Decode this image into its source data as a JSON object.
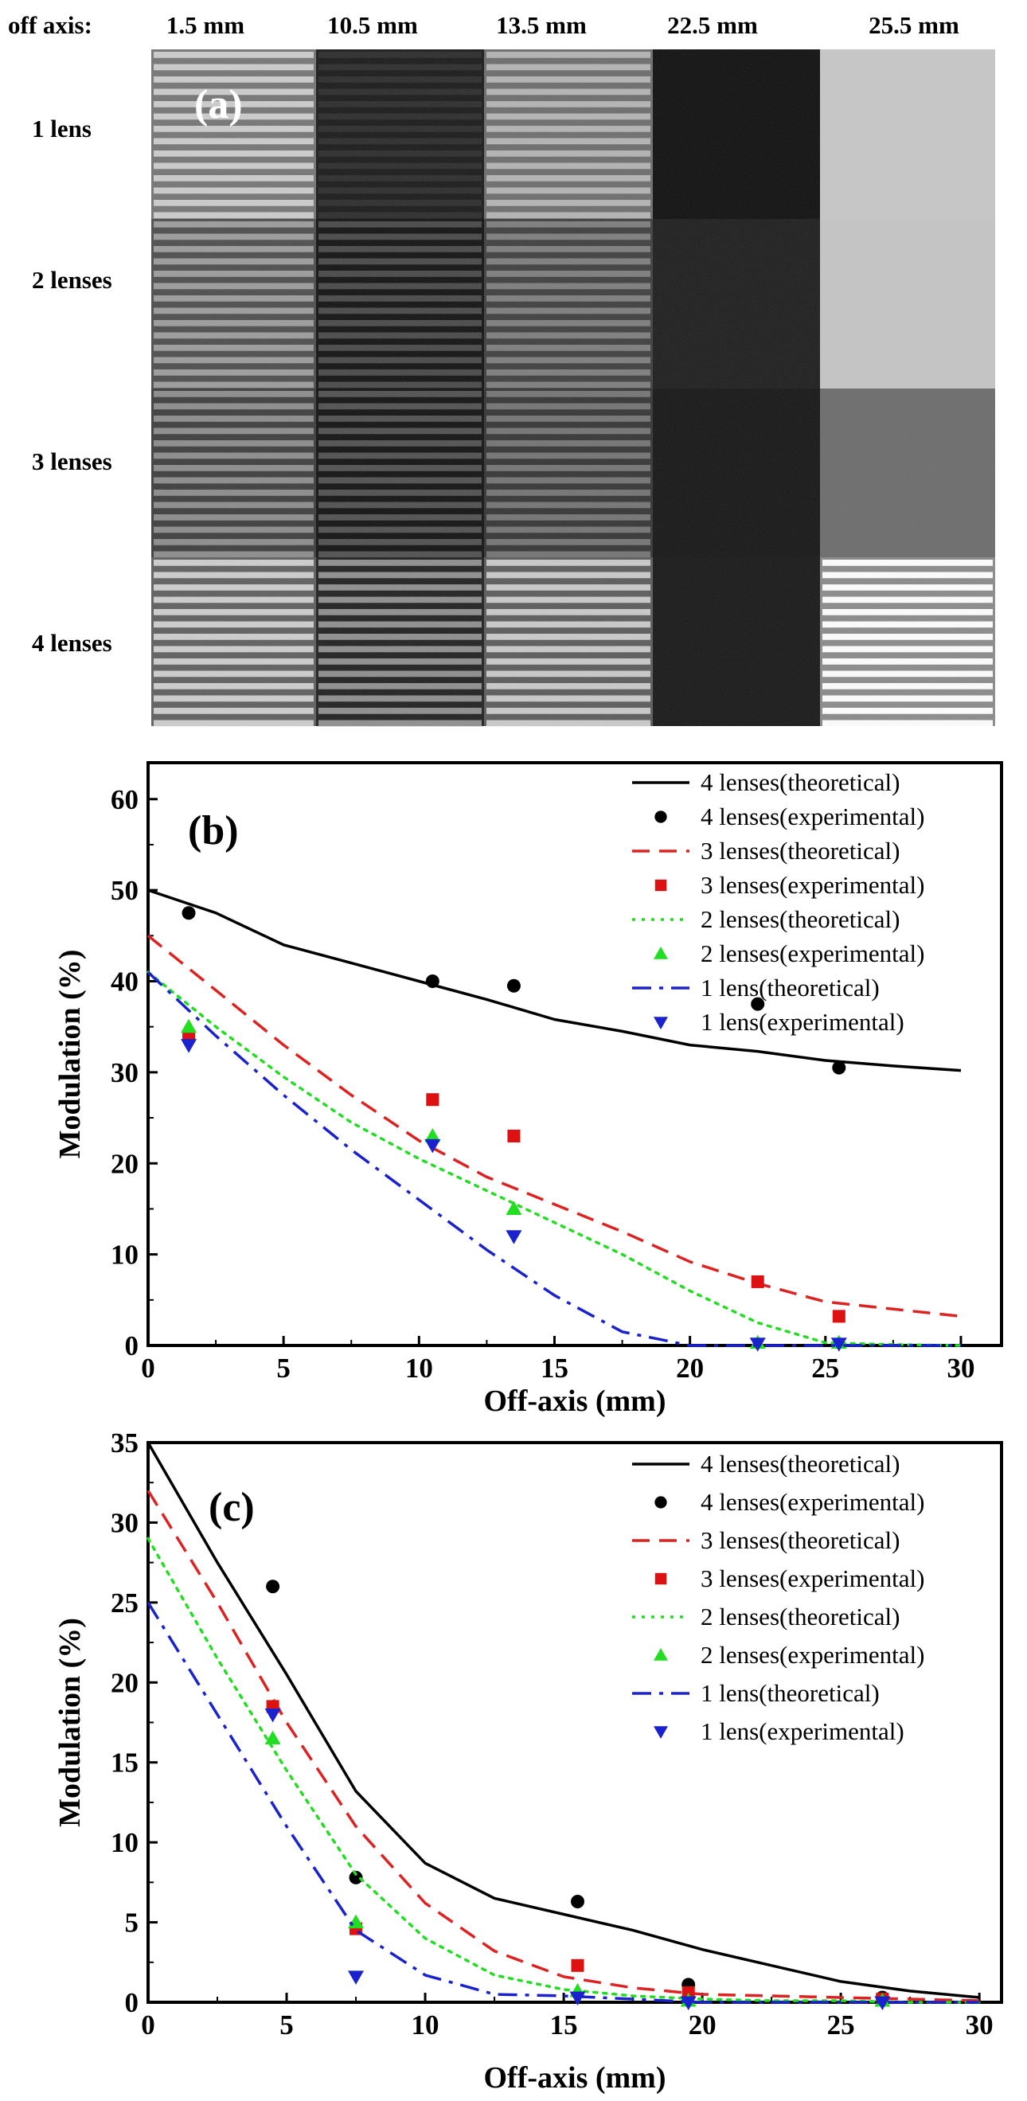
{
  "panel_a": {
    "label": "(a)",
    "corner_label": "off axis:",
    "columns": [
      "1.5 mm",
      "10.5 mm",
      "13.5 mm",
      "22.5 mm",
      "25.5 mm"
    ],
    "rows": [
      "1 lens",
      "2 lenses",
      "3 lenses",
      "4 lenses"
    ],
    "tiles": [
      [
        {
          "bg": "#9a9a9a",
          "stripes": true,
          "contrast": 0.55
        },
        {
          "bg": "#1e1e1e",
          "stripes": true,
          "contrast": 0.12
        },
        {
          "bg": "#8a8a8a",
          "stripes": true,
          "contrast": 0.45
        },
        {
          "bg": "#0b0b0b",
          "stripes": false,
          "contrast": 0
        },
        {
          "bg": "#c7c7c7",
          "stripes": false,
          "contrast": 0
        }
      ],
      [
        {
          "bg": "#6e6e6e",
          "stripes": true,
          "contrast": 0.5
        },
        {
          "bg": "#262626",
          "stripes": true,
          "contrast": 0.35
        },
        {
          "bg": "#585858",
          "stripes": true,
          "contrast": 0.4
        },
        {
          "bg": "#1a1a1a",
          "stripes": false,
          "contrast": 0
        },
        {
          "bg": "#c5c5c5",
          "stripes": false,
          "contrast": 0
        }
      ],
      [
        {
          "bg": "#5e5e5e",
          "stripes": true,
          "contrast": 0.5
        },
        {
          "bg": "#2a2a2a",
          "stripes": true,
          "contrast": 0.4
        },
        {
          "bg": "#4e4e4e",
          "stripes": true,
          "contrast": 0.4
        },
        {
          "bg": "#121212",
          "stripes": false,
          "contrast": 0
        },
        {
          "bg": "#6a6a6a",
          "stripes": false,
          "contrast": 0
        }
      ],
      [
        {
          "bg": "#8e8e8e",
          "stripes": true,
          "contrast": 0.7
        },
        {
          "bg": "#4e4e4e",
          "stripes": true,
          "contrast": 0.7
        },
        {
          "bg": "#8a8a8a",
          "stripes": true,
          "contrast": 0.7
        },
        {
          "bg": "#141414",
          "stripes": false,
          "contrast": 0
        },
        {
          "bg": "#bdbdbd",
          "stripes": true,
          "contrast": 0.75
        }
      ]
    ]
  },
  "chart_data": [
    {
      "type": "line",
      "panel_label": "(b)",
      "xlabel": "Off-axis (mm)",
      "ylabel": "Modulation (%)",
      "xlim": [
        0,
        31.5
      ],
      "ylim": [
        0,
        64
      ],
      "xticks": [
        "0",
        "5",
        "10",
        "15",
        "20",
        "25",
        "30"
      ],
      "xtick_values": [
        0,
        5,
        10,
        15,
        20,
        25,
        30
      ],
      "yticks": [
        "0",
        "10",
        "20",
        "30",
        "40",
        "50",
        "60"
      ],
      "ytick_values": [
        0,
        10,
        20,
        30,
        40,
        50,
        60
      ],
      "legend_position": "top-right",
      "series": [
        {
          "name": "4 lenses(theoretical)",
          "kind": "line",
          "dash": "solid",
          "color": "#000000",
          "x": [
            0,
            2.5,
            5,
            7.5,
            10,
            12.5,
            15,
            17.5,
            20,
            22.5,
            25,
            27.5,
            30
          ],
          "y": [
            50,
            47.5,
            44,
            42,
            40,
            38,
            35.8,
            34.5,
            33,
            32.3,
            31.3,
            30.7,
            30.2
          ]
        },
        {
          "name": "4 lenses(experimental)",
          "kind": "marker",
          "marker": "circle",
          "color": "#000000",
          "x": [
            1.5,
            10.5,
            13.5,
            22.5,
            25.5
          ],
          "y": [
            47.5,
            40,
            39.5,
            37.5,
            30.5
          ]
        },
        {
          "name": "3 lenses(theoretical)",
          "kind": "line",
          "dash": "dash",
          "color": "#dd2222",
          "x": [
            0,
            2.5,
            5,
            7.5,
            10,
            12.5,
            15,
            17.5,
            20,
            22.5,
            25,
            27.5,
            30
          ],
          "y": [
            45,
            39,
            33,
            27.5,
            22.5,
            18.5,
            15.5,
            12.5,
            9.2,
            6.8,
            4.8,
            4,
            3.2
          ]
        },
        {
          "name": "3 lenses(experimental)",
          "kind": "marker",
          "marker": "square",
          "color": "#dd1111",
          "x": [
            1.5,
            10.5,
            13.5,
            22.5,
            25.5
          ],
          "y": [
            34,
            27,
            23,
            7,
            3.2
          ]
        },
        {
          "name": "2 lenses(theoretical)",
          "kind": "line",
          "dash": "dot",
          "color": "#22dd22",
          "x": [
            0,
            2.5,
            5,
            7.5,
            10,
            12.5,
            15,
            17.5,
            20,
            22.5,
            25,
            27.5,
            30
          ],
          "y": [
            41,
            35,
            29.5,
            24.5,
            20.5,
            17,
            13.5,
            10,
            6,
            2.5,
            0.3,
            0.1,
            0
          ]
        },
        {
          "name": "2 lenses(experimental)",
          "kind": "marker",
          "marker": "triangle-up",
          "color": "#22dd22",
          "x": [
            1.5,
            10.5,
            13.5,
            22.5,
            25.5
          ],
          "y": [
            35,
            23,
            15,
            0.3,
            0.3
          ]
        },
        {
          "name": "1 lens(theoretical)",
          "kind": "line",
          "dash": "dashdot",
          "color": "#1a22cc",
          "x": [
            0,
            2.5,
            5,
            7.5,
            10,
            12.5,
            15,
            17.5,
            20,
            22.5,
            25,
            27.5,
            30
          ],
          "y": [
            41,
            34,
            27.5,
            21.5,
            16,
            10.5,
            5.5,
            1.5,
            0,
            0,
            0,
            0,
            0
          ]
        },
        {
          "name": "1 lens(experimental)",
          "kind": "marker",
          "marker": "triangle-down",
          "color": "#1a22cc",
          "x": [
            1.5,
            10.5,
            13.5,
            22.5,
            25.5
          ],
          "y": [
            33,
            22,
            12,
            0.2,
            0.2
          ]
        }
      ]
    },
    {
      "type": "line",
      "panel_label": "(c)",
      "xlabel": "Off-axis (mm)",
      "ylabel": "Modulation (%)",
      "xlim": [
        0,
        30.8
      ],
      "ylim": [
        0,
        35
      ],
      "xticks": [
        "0",
        "5",
        "10",
        "15",
        "20",
        "25",
        "30"
      ],
      "xtick_values": [
        0,
        5,
        10,
        15,
        20,
        25,
        30
      ],
      "yticks": [
        "0",
        "5",
        "10",
        "15",
        "20",
        "25",
        "30",
        "35"
      ],
      "ytick_values": [
        0,
        5,
        10,
        15,
        20,
        25,
        30,
        35
      ],
      "legend_position": "top-right",
      "series": [
        {
          "name": "4 lenses(theoretical)",
          "kind": "line",
          "dash": "solid",
          "color": "#000000",
          "x": [
            0,
            2.5,
            5,
            7.5,
            10,
            12.5,
            15,
            17.5,
            20,
            22.5,
            25,
            27.5,
            30
          ],
          "y": [
            35,
            27.5,
            20.5,
            13.2,
            8.7,
            6.5,
            5.5,
            4.5,
            3.3,
            2.3,
            1.3,
            0.7,
            0.3
          ]
        },
        {
          "name": "4 lenses(experimental)",
          "kind": "marker",
          "marker": "circle",
          "color": "#000000",
          "x": [
            4.5,
            7.5,
            15.5,
            19.5,
            26.5
          ],
          "y": [
            26,
            7.8,
            6.3,
            1.1,
            0.3
          ]
        },
        {
          "name": "3 lenses(theoretical)",
          "kind": "line",
          "dash": "dash",
          "color": "#dd2222",
          "x": [
            0,
            2.5,
            5,
            7.5,
            10,
            12.5,
            15,
            17.5,
            20,
            22.5,
            25,
            27.5,
            30
          ],
          "y": [
            32,
            25,
            17.5,
            11,
            6.2,
            3.2,
            1.6,
            0.9,
            0.5,
            0.4,
            0.3,
            0.2,
            0.1
          ]
        },
        {
          "name": "3 lenses(experimental)",
          "kind": "marker",
          "marker": "square",
          "color": "#dd1111",
          "x": [
            4.5,
            7.5,
            15.5,
            19.5,
            26.5
          ],
          "y": [
            18.5,
            4.6,
            2.3,
            0.6,
            0.2
          ]
        },
        {
          "name": "2 lenses(theoretical)",
          "kind": "line",
          "dash": "dot",
          "color": "#22dd22",
          "x": [
            0,
            2.5,
            5,
            7.5,
            10,
            12.5,
            15,
            17.5,
            20,
            22.5,
            25,
            27.5,
            30
          ],
          "y": [
            29,
            21.5,
            14.5,
            8,
            4,
            1.7,
            0.8,
            0.4,
            0.2,
            0.1,
            0.1,
            0,
            0
          ]
        },
        {
          "name": "2 lenses(experimental)",
          "kind": "marker",
          "marker": "triangle-up",
          "color": "#22dd22",
          "x": [
            4.5,
            7.5,
            15.5,
            19.5,
            26.5
          ],
          "y": [
            16.5,
            5,
            0.7,
            0.1,
            0.1
          ]
        },
        {
          "name": "1 lens(theoretical)",
          "kind": "line",
          "dash": "dashdot",
          "color": "#1a22cc",
          "x": [
            0,
            2.5,
            5,
            7.5,
            10,
            12.5,
            15,
            17.5,
            20,
            22.5,
            25,
            27.5,
            30
          ],
          "y": [
            25,
            18,
            11,
            4.5,
            1.7,
            0.5,
            0.4,
            0.2,
            0,
            0,
            0,
            0,
            0
          ]
        },
        {
          "name": "1 lens(experimental)",
          "kind": "marker",
          "marker": "triangle-down",
          "color": "#1a22cc",
          "x": [
            4.5,
            7.5,
            15.5,
            19.5,
            26.5
          ],
          "y": [
            18,
            1.6,
            0.3,
            0,
            0
          ]
        }
      ]
    }
  ]
}
